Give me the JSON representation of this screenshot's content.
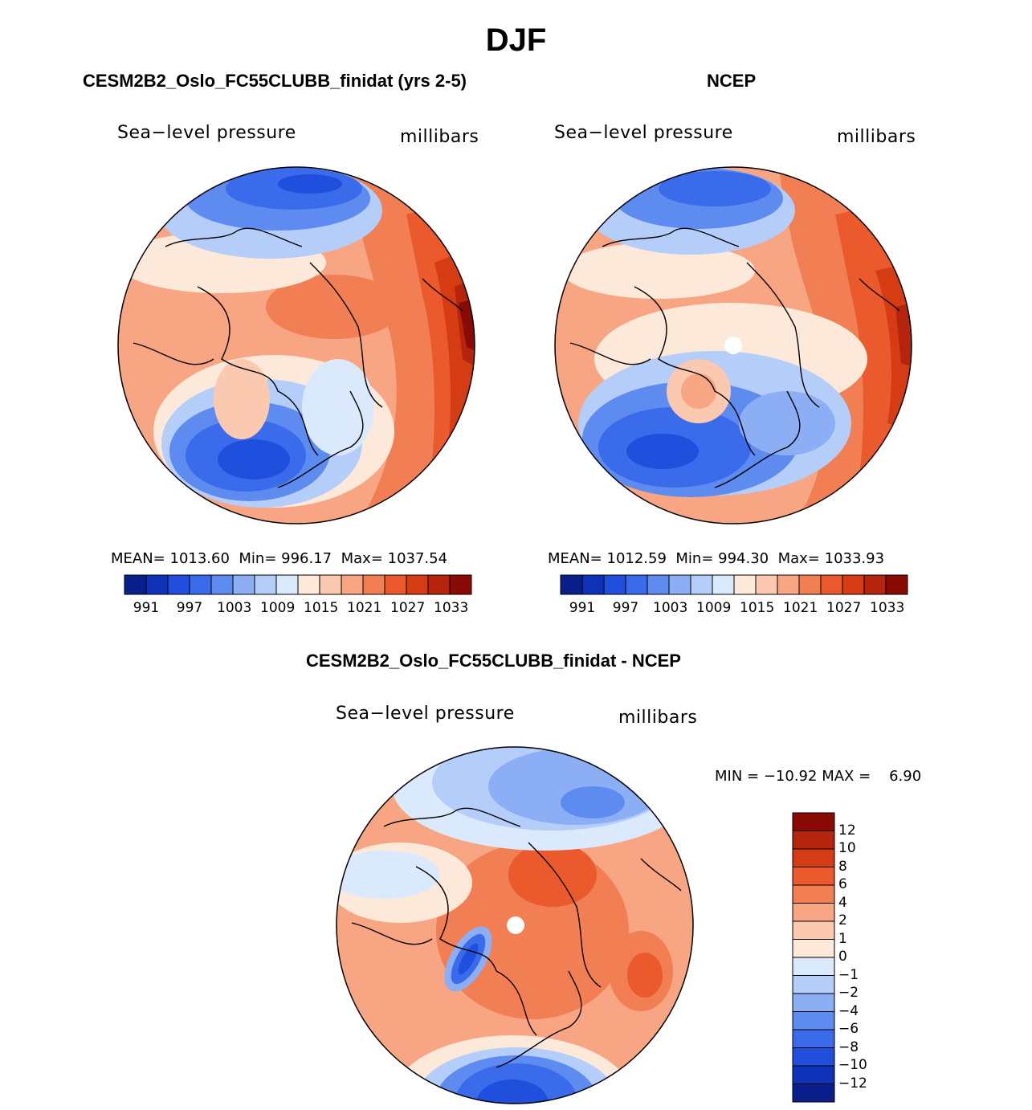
{
  "page": {
    "title": "DJF"
  },
  "panels": [
    {
      "title": "CESM2B2_Oslo_FC55CLUBB_finidat (yrs 2-5)",
      "variable": "Sea−level pressure",
      "units": "millibars",
      "stats": {
        "mean_label": "MEAN=",
        "mean": "1013.60",
        "min_label": "Min=",
        "min": "996.17",
        "max_label": "Max=",
        "max": "1037.54"
      }
    },
    {
      "title": "NCEP",
      "variable": "Sea−level pressure",
      "units": "millibars",
      "stats": {
        "mean_label": "MEAN=",
        "mean": "1012.59",
        "min_label": "Min=",
        "min": "994.30",
        "max_label": "Max=",
        "max": "1033.93"
      }
    }
  ],
  "diff_panel": {
    "title": "CESM2B2_Oslo_FC55CLUBB_finidat - NCEP",
    "variable": "Sea−level pressure",
    "units": "millibars",
    "stats": {
      "min_label": "MIN =",
      "min": "−10.92",
      "max_label": "MAX =",
      "max": "6.90"
    }
  },
  "abs_colorbar": {
    "colors": [
      "#0a1f8c",
      "#0f33b8",
      "#1f4fdc",
      "#3a6bea",
      "#5d8bf0",
      "#8caef5",
      "#b4cdf9",
      "#dbe9fc",
      "#fde9da",
      "#fbc9b0",
      "#f7a582",
      "#f27e54",
      "#ea5a2c",
      "#d63c14",
      "#b5240d",
      "#8a0a05"
    ],
    "ticks": [
      "991",
      "997",
      "1003",
      "1009",
      "1015",
      "1021",
      "1027",
      "1033"
    ]
  },
  "diff_colorbar": {
    "colors": [
      "#8a0a05",
      "#b5240d",
      "#d63c14",
      "#ea5a2c",
      "#f27e54",
      "#f7a582",
      "#fbc9b0",
      "#fde9da",
      "#dbe9fc",
      "#b4cdf9",
      "#8caef5",
      "#5d8bf0",
      "#3a6bea",
      "#1f4fdc",
      "#0f33b8",
      "#0a1f8c"
    ],
    "ticks": [
      "12",
      "10",
      "8",
      "6",
      "4",
      "2",
      "1",
      "0",
      "−1",
      "−2",
      "−4",
      "−6",
      "−8",
      "−10",
      "−12"
    ]
  }
}
